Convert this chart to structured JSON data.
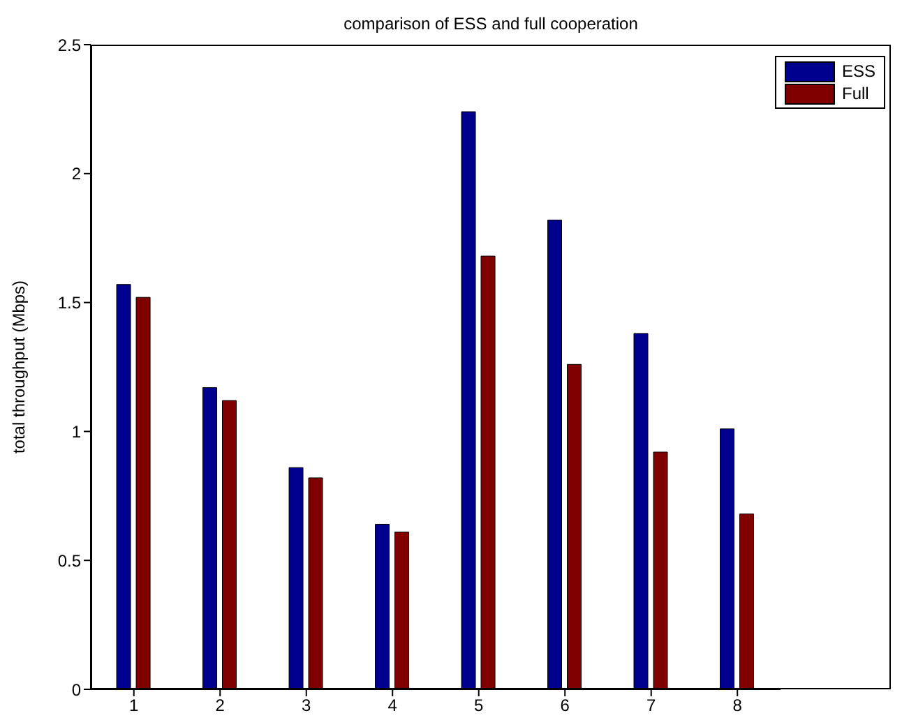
{
  "chart_data": {
    "type": "bar",
    "title": "comparison of ESS and full cooperation",
    "ylabel": "total throughput (Mbps)",
    "categories": [
      "1",
      "2",
      "3",
      "4",
      "5",
      "6",
      "7",
      "8"
    ],
    "series": [
      {
        "name": "ESS",
        "color": "#00008f",
        "values": [
          1.57,
          1.17,
          0.86,
          0.64,
          2.24,
          1.82,
          1.38,
          1.01
        ]
      },
      {
        "name": "Full",
        "color": "#800000",
        "values": [
          1.52,
          1.12,
          0.82,
          0.61,
          1.68,
          1.26,
          0.92,
          0.68
        ]
      }
    ],
    "ylim": [
      0,
      2.5
    ],
    "yticks": [
      0,
      0.5,
      1,
      1.5,
      2,
      2.5
    ],
    "grid": false,
    "legend": "top right"
  }
}
